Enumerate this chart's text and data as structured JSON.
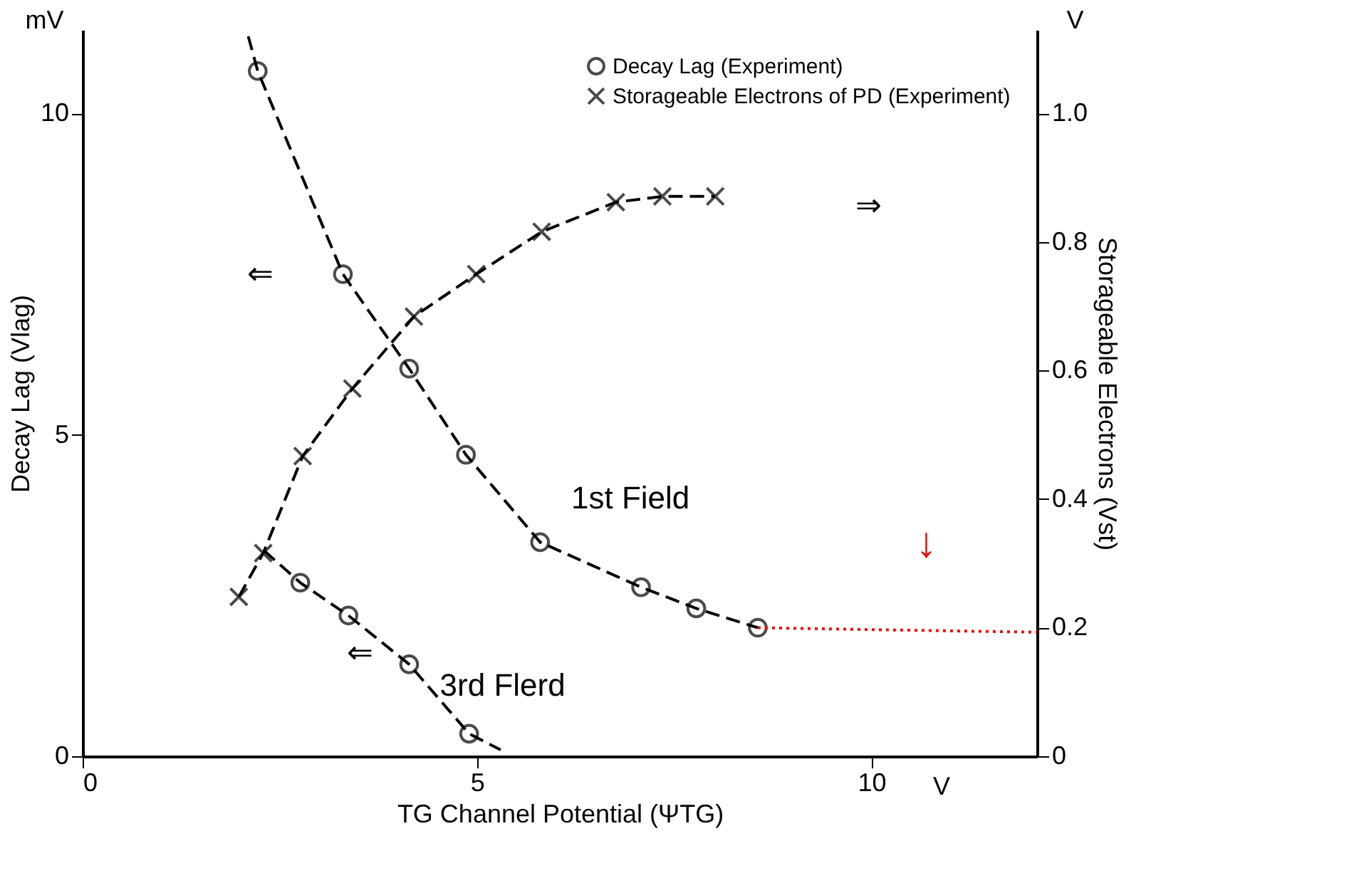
{
  "chart_data": {
    "type": "line",
    "xlabel": "TG Channel Potential (ΨTG)",
    "ylabel": "Decay Lag (Vlag)",
    "y2label": "Storageable Electrons (Vst)",
    "xlim": [
      0,
      12.1
    ],
    "xticks": [
      0,
      5,
      10
    ],
    "ylim": [
      0,
      11.3
    ],
    "yticks": [
      0,
      5,
      10
    ],
    "y2lim": [
      0,
      1.13
    ],
    "y2ticks": [
      0,
      0.2,
      0.4,
      0.6,
      0.8,
      {
        "value": 1.0,
        "label": "1.0"
      }
    ],
    "grid": false,
    "legend": "top right",
    "series": [
      {
        "type": "scatter",
        "name": "Decay Lag (Experiment)",
        "color": "#000000",
        "marker": "circle",
        "x": [
          2.22,
          3.3,
          4.14,
          4.86,
          5.8,
          7.08,
          7.78,
          8.56
        ],
        "values": [
          10.66,
          7.5,
          6.03,
          4.69,
          3.33,
          2.63,
          2.3,
          2.0
        ]
      },
      {
        "type": "line",
        "color": "#000000",
        "marker": "none",
        "line_style": "dashed",
        "x": [
          2.1,
          2.22,
          3.3,
          4.14,
          4.86,
          5.8,
          7.08,
          7.78,
          8.56
        ],
        "values": [
          11.2,
          10.66,
          7.5,
          6.03,
          4.69,
          3.33,
          2.63,
          2.3,
          2.0
        ]
      },
      {
        "type": "line",
        "color": "#e8100c",
        "marker": "none",
        "line_style": "dotted",
        "x": [
          8.56,
          10.5,
          12.1
        ],
        "values": [
          2.0,
          1.96,
          1.93
        ]
      },
      {
        "type": "scatter",
        "color": "#000000",
        "marker": "circle",
        "x": [
          2.76,
          3.37,
          4.14,
          4.9
        ],
        "values": [
          2.7,
          2.19,
          1.43,
          0.35
        ]
      },
      {
        "type": "line",
        "color": "#000000",
        "marker": "none",
        "line_style": "dashed",
        "x": [
          2.3,
          2.76,
          3.37,
          4.14,
          4.9,
          5.3
        ],
        "values": [
          3.2,
          2.7,
          2.19,
          1.43,
          0.35,
          0.1
        ]
      },
      {
        "type": "line",
        "name": "Storageable Electrons of PD (Experiment)",
        "color": "#000000",
        "marker": "cross",
        "line_style": "dashed",
        "axis": "y2",
        "x": [
          1.98,
          2.29,
          2.79,
          3.42,
          4.2,
          4.99,
          5.82,
          6.76,
          7.35,
          8.02
        ],
        "values": [
          0.248,
          0.316,
          0.467,
          0.572,
          0.684,
          0.75,
          0.816,
          0.862,
          0.871,
          0.871
        ]
      }
    ],
    "annotations": [
      "mV",
      "V",
      "V",
      "1st Field",
      "3rd Flerd",
      "⇐",
      "⇐",
      "⇒",
      "↓"
    ]
  }
}
